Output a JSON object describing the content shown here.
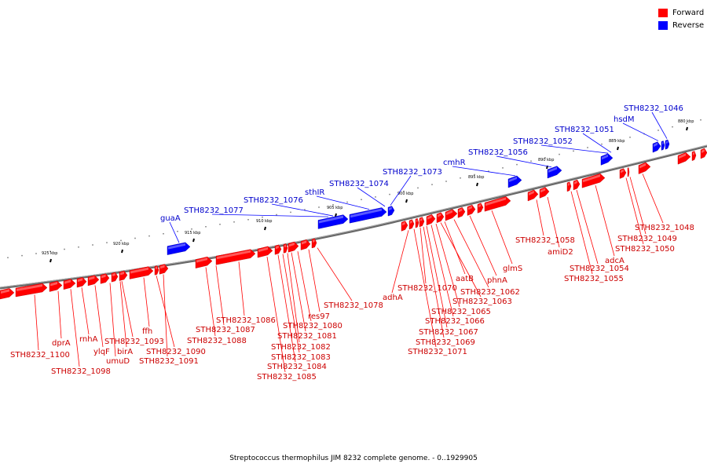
{
  "legend": {
    "forward_label": "Forward",
    "reverse_label": "Reverse",
    "forward_color": "#ff0000",
    "reverse_color": "#0000ff"
  },
  "caption": "Streptococcus thermophilus JIM 8232 complete genome. - 0..1929905",
  "scale_labels": [
    "925 kbp",
    "920 kbp",
    "915 kbp",
    "910 kbp",
    "905 kbp",
    "900 kbp",
    "895 kbp",
    "890 kbp",
    "885 kbp",
    "880 kbp"
  ],
  "forward_gene_labels": [
    "STH8232_1100",
    "dprA",
    "STH8232_1098",
    "rnhA",
    "ylqF",
    "umuD",
    "birA",
    "STH8232_1093",
    "ffh",
    "STH8232_1090",
    "STH8232_1091",
    "STH8232_1088",
    "STH8232_1087",
    "STH8232_1086",
    "STH8232_1085",
    "STH8232_1084",
    "STH8232_1083",
    "STH8232_1082",
    "STH8232_1081",
    "STH8232_1080",
    "res97",
    "STH8232_1078",
    "adhA",
    "STH8232_1071",
    "STH8232_1070",
    "STH8232_1069",
    "STH8232_1067",
    "STH8232_1066",
    "STH8232_1065",
    "STH8232_1063",
    "aatB",
    "STH8232_1062",
    "phnA",
    "glmS",
    "STH8232_1058",
    "amiD2",
    "STH8232_1055",
    "STH8232_1054",
    "adcA",
    "STH8232_1050",
    "STH8232_1049",
    "STH8232_1048"
  ],
  "reverse_gene_labels": [
    "guaA",
    "STH8232_1077",
    "STH8232_1076",
    "sthIR",
    "STH8232_1074",
    "STH8232_1073",
    "cmhR",
    "STH8232_1056",
    "STH8232_1052",
    "STH8232_1051",
    "hsdM",
    "STH8232_1046"
  ]
}
